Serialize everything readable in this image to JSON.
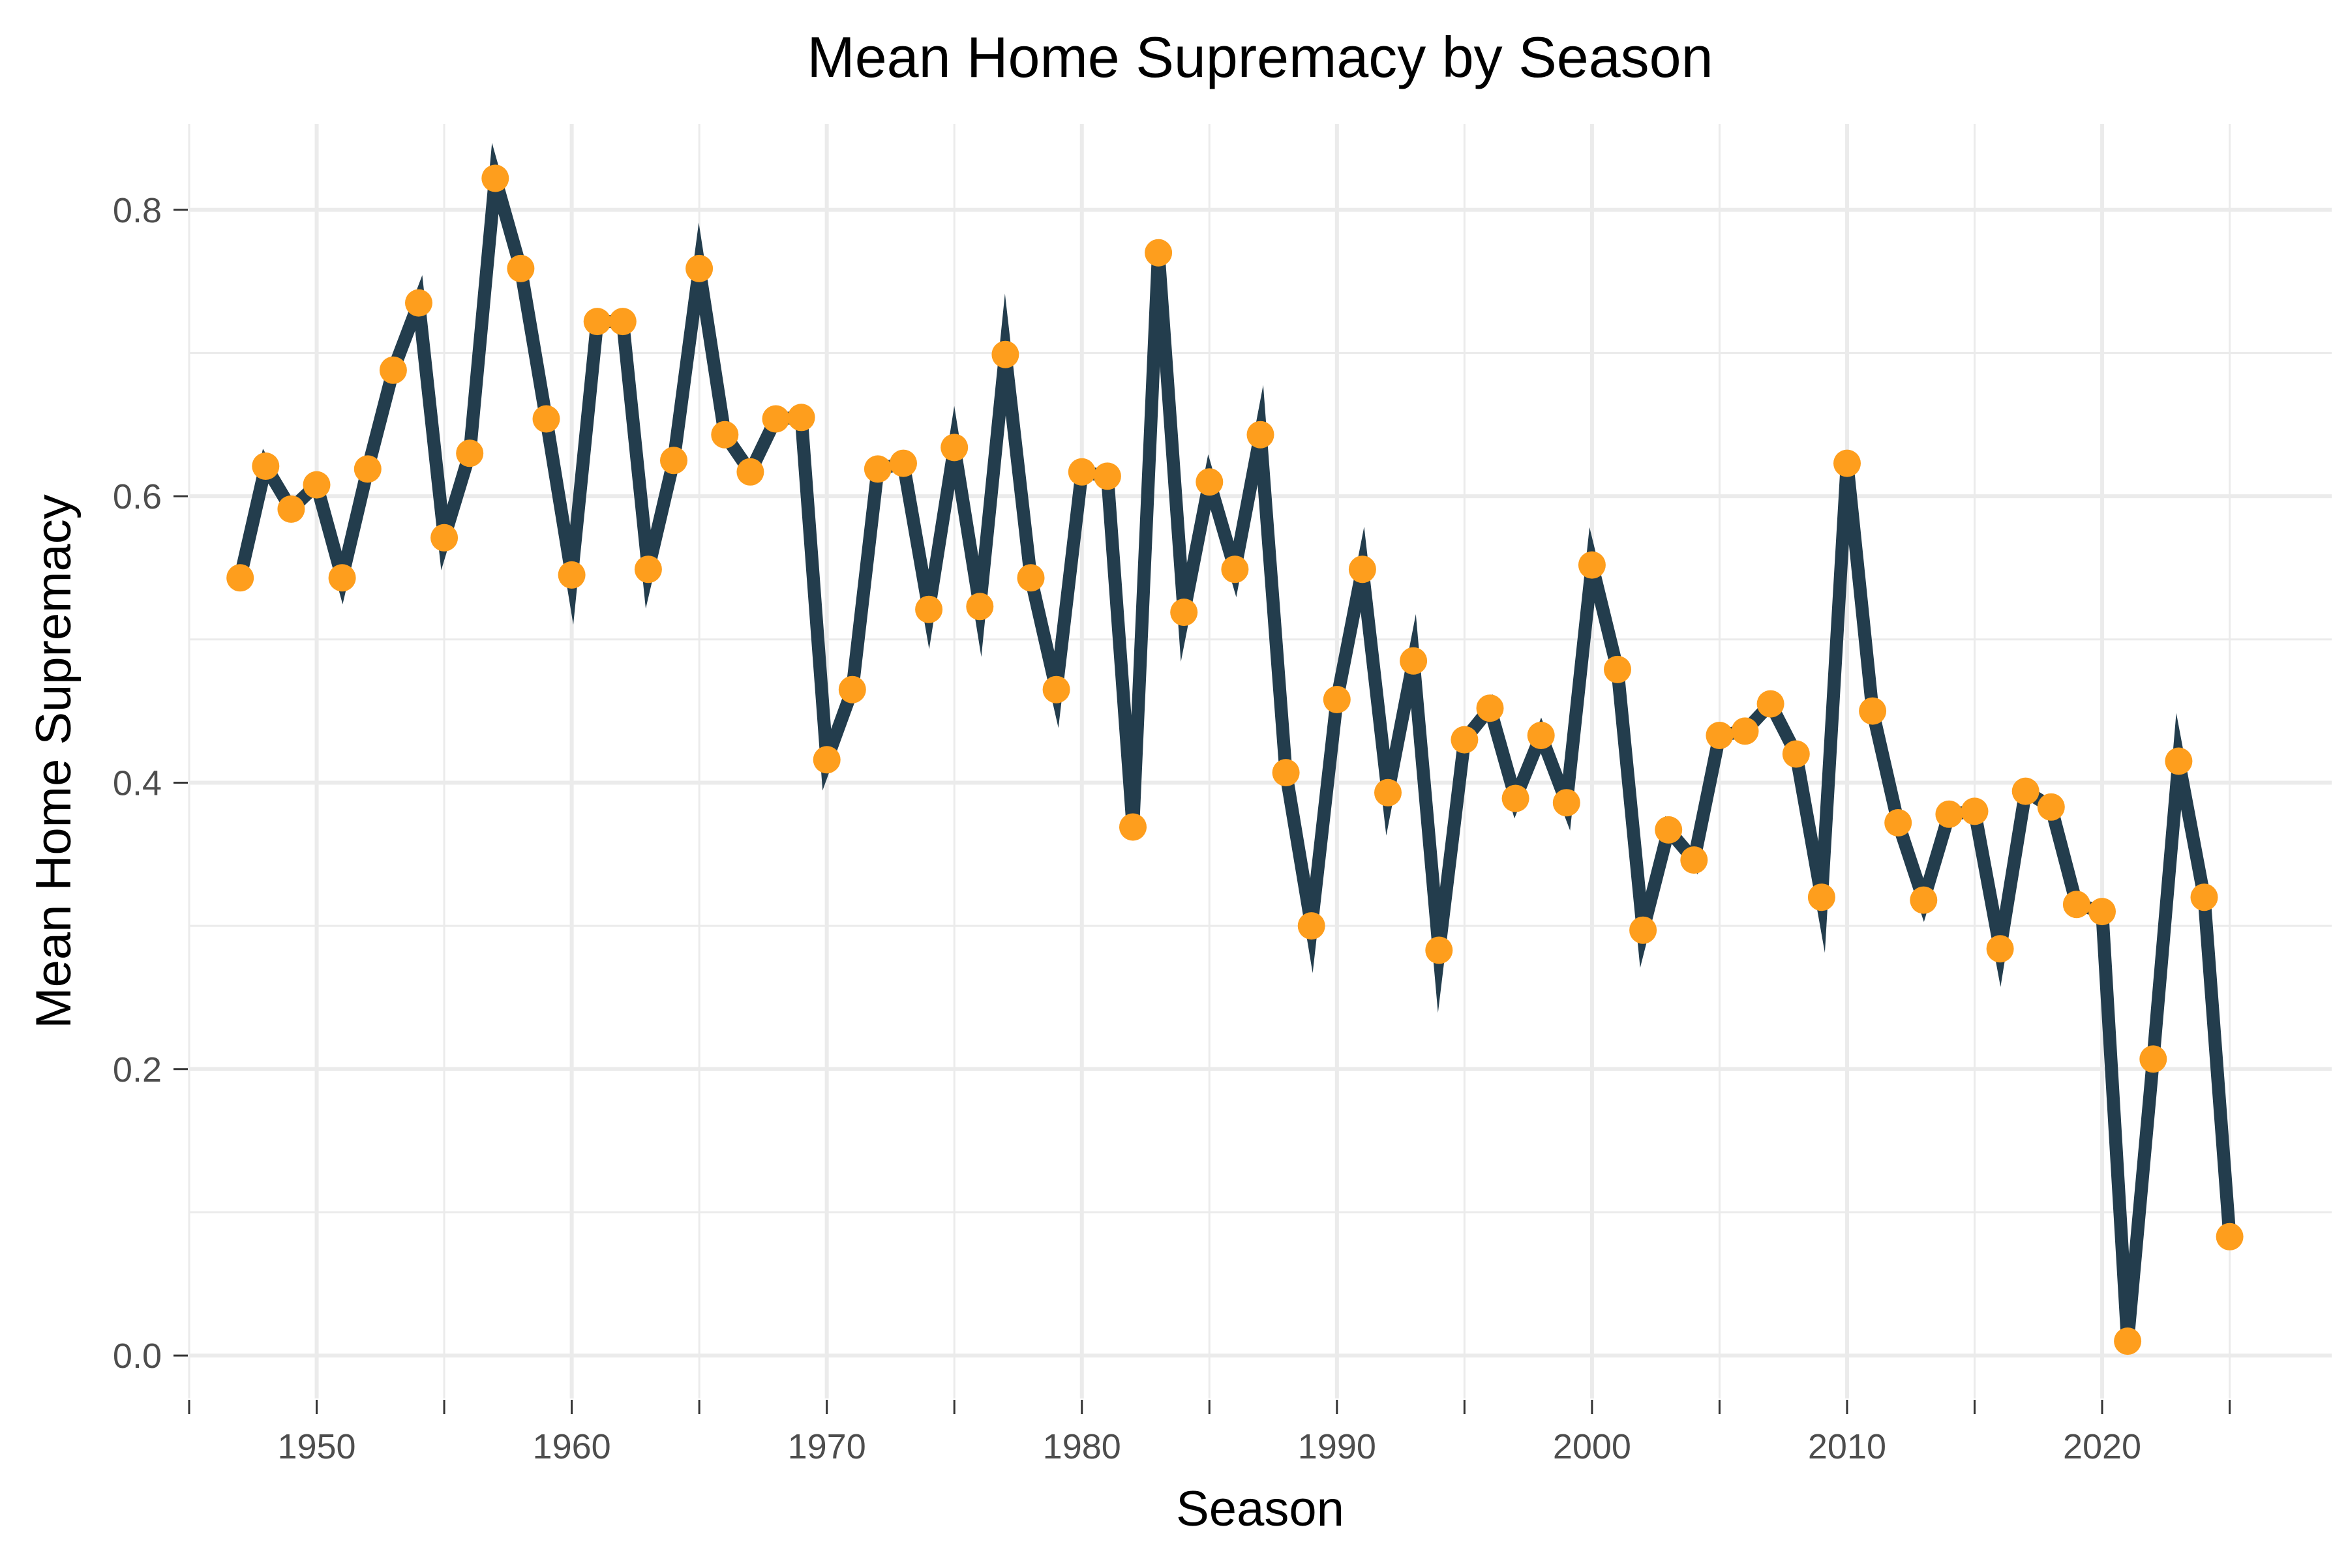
{
  "chart_data": {
    "type": "line",
    "title": "Mean Home Supremacy by Season",
    "xlabel": "Season",
    "ylabel": "Mean Home Supremacy",
    "xlim": [
      1945,
      2029
    ],
    "ylim": [
      -0.03,
      0.86
    ],
    "x_ticks": [
      1950,
      1960,
      1970,
      1980,
      1990,
      2000,
      2010,
      2020
    ],
    "x_tick_labels": [
      "1950",
      "1960",
      "1970",
      "1980",
      "1990",
      "2000",
      "2010",
      "2020"
    ],
    "y_ticks": [
      0.0,
      0.2,
      0.4,
      0.6,
      0.8
    ],
    "y_tick_labels": [
      "0.0",
      "0.2",
      "0.4",
      "0.6",
      "0.8"
    ],
    "grid": true,
    "line_color": "#233d4d",
    "point_color": "#fe9e1d",
    "x": [
      1947,
      1948,
      1949,
      1950,
      1951,
      1952,
      1953,
      1954,
      1955,
      1956,
      1957,
      1958,
      1959,
      1960,
      1961,
      1962,
      1963,
      1964,
      1965,
      1966,
      1967,
      1968,
      1969,
      1970,
      1971,
      1972,
      1973,
      1974,
      1975,
      1976,
      1977,
      1978,
      1979,
      1980,
      1981,
      1982,
      1983,
      1984,
      1985,
      1986,
      1987,
      1988,
      1989,
      1990,
      1991,
      1992,
      1993,
      1994,
      1995,
      1996,
      1997,
      1998,
      1999,
      2000,
      2001,
      2002,
      2003,
      2004,
      2005,
      2006,
      2007,
      2008,
      2009,
      2010,
      2011,
      2012,
      2013,
      2014,
      2015,
      2016,
      2017,
      2018,
      2019,
      2020,
      2021,
      2022,
      2023,
      2024,
      2025
    ],
    "y": [
      0.543,
      0.621,
      0.591,
      0.608,
      0.543,
      0.619,
      0.688,
      0.735,
      0.571,
      0.63,
      0.822,
      0.759,
      0.654,
      0.545,
      0.722,
      0.722,
      0.549,
      0.625,
      0.759,
      0.643,
      0.617,
      0.654,
      0.655,
      0.416,
      0.465,
      0.619,
      0.623,
      0.521,
      0.634,
      0.523,
      0.699,
      0.543,
      0.465,
      0.617,
      0.614,
      0.369,
      0.77,
      0.519,
      0.61,
      0.549,
      0.643,
      0.407,
      0.3,
      0.458,
      0.549,
      0.393,
      0.485,
      0.283,
      0.43,
      0.452,
      0.389,
      0.433,
      0.386,
      0.552,
      0.479,
      0.297,
      0.367,
      0.346,
      0.433,
      0.436,
      0.455,
      0.42,
      0.32,
      0.623,
      0.45,
      0.372,
      0.318,
      0.378,
      0.38,
      0.284,
      0.394,
      0.383,
      0.315,
      0.31,
      0.01,
      0.207,
      0.415,
      0.32,
      0.083
    ]
  }
}
